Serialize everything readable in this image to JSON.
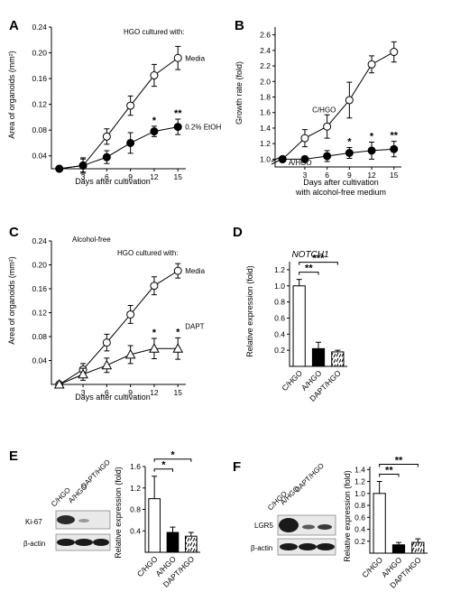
{
  "colors": {
    "ink": "#000000",
    "paper": "#ffffff",
    "blot_band": "#1a1a1a",
    "blot_bg": "#e6e6e6"
  },
  "panels": {
    "A": {
      "label": "A",
      "header": "HGO cultured with:"
    },
    "B": {
      "label": "B"
    },
    "C": {
      "label": "C",
      "condition": "Alcohol-free",
      "header": "HGO cultured with:"
    },
    "D": {
      "label": "D"
    },
    "E": {
      "label": "E",
      "blot_columns": [
        "C/HGO",
        "A/HGO",
        "DAPT/HGO"
      ],
      "blot_rows": [
        "Ki-67",
        "β-actin"
      ]
    },
    "F": {
      "label": "F",
      "blot_columns": [
        "C/HGO",
        "A/HGO",
        "DAPT/HGO"
      ],
      "blot_rows": [
        "LGR5",
        "β-actin"
      ]
    }
  },
  "chart_data": [
    {
      "panel": "A",
      "type": "line",
      "xlabel": "Days after cultivation",
      "ylabel": "Area of organoids (mm²)",
      "xticks": [
        3,
        6,
        9,
        12,
        15
      ],
      "xlim": [
        -1,
        16
      ],
      "yticks": [
        "0.04",
        "0.08",
        "0.12",
        "0.16",
        "0.20",
        "0.24"
      ],
      "ylim": [
        0.02,
        0.24
      ],
      "x": [
        0,
        3,
        6,
        9,
        12,
        15
      ],
      "series": [
        {
          "name": "Media",
          "marker": "open-circle",
          "values": [
            0.02,
            0.025,
            0.07,
            0.118,
            0.165,
            0.192
          ],
          "err": [
            0.003,
            0.012,
            0.012,
            0.015,
            0.017,
            0.018
          ]
        },
        {
          "name": "0.2% EtOH",
          "marker": "filled-circle",
          "values": [
            0.02,
            0.025,
            0.038,
            0.06,
            0.078,
            0.085
          ],
          "err": [
            0.003,
            0.01,
            0.01,
            0.016,
            0.008,
            0.012
          ]
        }
      ],
      "significance": [
        {
          "x": 12,
          "label": "*"
        },
        {
          "x": 15,
          "label": "**"
        }
      ]
    },
    {
      "panel": "B",
      "type": "line",
      "xlabel": "Days after cultivation",
      "xlabel2": "with alcohol-free medium",
      "ylabel": "Growth rate (fold)",
      "xticks": [
        3,
        6,
        9,
        12,
        15
      ],
      "xlim": [
        -1,
        16
      ],
      "yticks": [
        "1.0",
        "1.2",
        "1.4",
        "1.6",
        "1.8",
        "2.0",
        "2.2",
        "2.4",
        "2.6"
      ],
      "ylim": [
        0.9,
        2.7
      ],
      "axis_break": true,
      "x": [
        0,
        3,
        6,
        9,
        12,
        15
      ],
      "series": [
        {
          "name": "C/HGO",
          "marker": "open-circle",
          "values": [
            1.0,
            1.27,
            1.42,
            1.76,
            2.22,
            2.38
          ],
          "err": [
            0.02,
            0.11,
            0.15,
            0.23,
            0.11,
            0.13
          ]
        },
        {
          "name": "A/HGO",
          "marker": "filled-circle",
          "values": [
            1.0,
            1.0,
            1.04,
            1.08,
            1.11,
            1.13
          ],
          "err": [
            0.02,
            0.04,
            0.07,
            0.07,
            0.11,
            0.1
          ]
        }
      ],
      "significance": [
        {
          "x": 9,
          "label": "*"
        },
        {
          "x": 12,
          "label": "*"
        },
        {
          "x": 15,
          "label": "**"
        }
      ]
    },
    {
      "panel": "C",
      "type": "line",
      "xlabel": "Days after cultivation",
      "ylabel": "Area of organoids (mm²)",
      "xticks": [
        3,
        6,
        9,
        12,
        15
      ],
      "xlim": [
        -1,
        16
      ],
      "yticks": [
        "0.04",
        "0.08",
        "0.12",
        "0.16",
        "0.20",
        "0.24"
      ],
      "ylim": [
        0.0,
        0.24
      ],
      "x": [
        0,
        3,
        6,
        9,
        12,
        15
      ],
      "series": [
        {
          "name": "Media",
          "marker": "open-circle",
          "values": [
            0.0,
            0.025,
            0.07,
            0.117,
            0.165,
            0.19
          ],
          "err": [
            0.002,
            0.01,
            0.014,
            0.015,
            0.015,
            0.012
          ]
        },
        {
          "name": "DAPT",
          "marker": "open-triangle",
          "values": [
            0.0,
            0.017,
            0.032,
            0.05,
            0.06,
            0.06
          ],
          "err": [
            0.002,
            0.01,
            0.012,
            0.015,
            0.017,
            0.018
          ]
        }
      ],
      "significance": [
        {
          "x": 12,
          "label": "*"
        },
        {
          "x": 15,
          "label": "*"
        }
      ]
    },
    {
      "panel": "D",
      "type": "bar",
      "title": "NOTCH1",
      "ylabel": "Relative expression (fold)",
      "categories": [
        "C/HGO",
        "A/HGO",
        "DAPT/HGO"
      ],
      "fills": [
        "open",
        "solid",
        "hatched"
      ],
      "values": [
        1.0,
        0.22,
        0.18
      ],
      "err": [
        0.08,
        0.08,
        0.02
      ],
      "yticks": [
        "0.2",
        "0.4",
        "0.6",
        "0.8",
        "1.0",
        "1.2"
      ],
      "ylim": [
        0,
        1.3
      ],
      "significance": [
        {
          "from": 0,
          "to": 1,
          "label": "**"
        },
        {
          "from": 0,
          "to": 2,
          "label": "***"
        }
      ]
    },
    {
      "panel": "E",
      "type": "bar",
      "ylabel": "Relative expression (fold)",
      "categories": [
        "C/HGO",
        "A/HGO",
        "DAPT/HGO"
      ],
      "fills": [
        "open",
        "solid",
        "hatched"
      ],
      "values": [
        1.0,
        0.37,
        0.3
      ],
      "err": [
        0.42,
        0.1,
        0.07
      ],
      "yticks": [
        "0.4",
        "0.8",
        "1.2",
        "1.6"
      ],
      "ylim": [
        0,
        1.6
      ],
      "significance": [
        {
          "from": 0,
          "to": 1,
          "label": "*"
        },
        {
          "from": 0,
          "to": 2,
          "label": "*"
        }
      ]
    },
    {
      "panel": "F",
      "type": "bar",
      "ylabel": "Relative expression (fold)",
      "categories": [
        "C/HGO",
        "A/HGO",
        "DAPT/HGO"
      ],
      "fills": [
        "open",
        "solid",
        "hatched"
      ],
      "values": [
        1.0,
        0.14,
        0.18
      ],
      "err": [
        0.2,
        0.04,
        0.06
      ],
      "yticks": [
        "0.2",
        "0.4",
        "0.6",
        "0.8",
        "1.0",
        "1.2",
        "1.4"
      ],
      "ylim": [
        0,
        1.45
      ],
      "significance": [
        {
          "from": 0,
          "to": 1,
          "label": "**"
        },
        {
          "from": 0,
          "to": 2,
          "label": "**"
        }
      ]
    }
  ]
}
